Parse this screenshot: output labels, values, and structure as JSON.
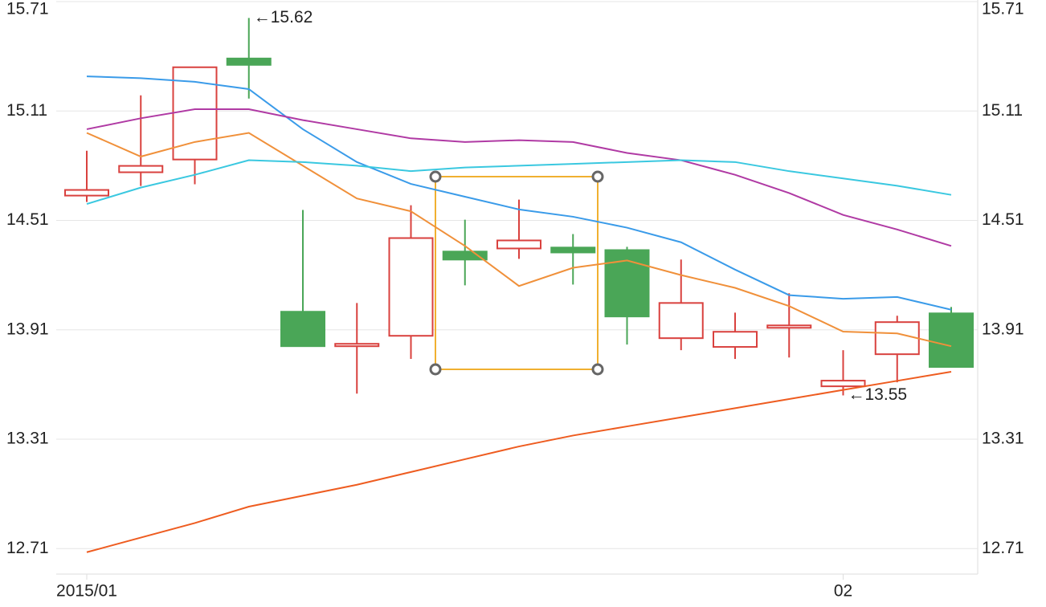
{
  "chart_data": {
    "type": "candlestick",
    "categories": [
      "2015/01",
      null,
      null,
      null,
      null,
      null,
      null,
      null,
      null,
      null,
      null,
      null,
      null,
      null,
      "02",
      null,
      null
    ],
    "open": [
      14.646,
      14.774,
      14.844,
      15.398,
      14.009,
      13.82,
      13.877,
      14.339,
      14.356,
      14.361,
      14.347,
      13.864,
      13.816,
      13.921,
      13.6,
      13.776,
      14.0
    ],
    "high": [
      14.892,
      15.196,
      15.35,
      15.62,
      14.567,
      14.057,
      14.593,
      14.514,
      14.624,
      14.435,
      14.365,
      14.295,
      14.004,
      14.11,
      13.798,
      13.987,
      14.035
    ],
    "low": [
      14.611,
      14.699,
      14.708,
      15.178,
      13.82,
      13.56,
      13.75,
      14.154,
      14.299,
      14.158,
      13.829,
      13.798,
      13.75,
      13.758,
      13.55,
      13.622,
      13.706
    ],
    "close": [
      14.677,
      14.809,
      15.35,
      15.363,
      13.82,
      13.833,
      14.413,
      14.295,
      14.4,
      14.334,
      13.983,
      14.057,
      13.899,
      13.934,
      13.631,
      13.952,
      13.706
    ],
    "up_color": "#d9413e",
    "down_color": "#4aa657",
    "series": [
      {
        "color": "#f0903a",
        "values": [
          14.99,
          14.86,
          14.94,
          14.99,
          14.81,
          14.63,
          14.56,
          14.37,
          14.15,
          14.25,
          14.29,
          14.21,
          14.14,
          14.04,
          13.9,
          13.89,
          13.82
        ]
      },
      {
        "color": "#3a9be9",
        "values": [
          15.3,
          15.29,
          15.27,
          15.23,
          15.01,
          14.83,
          14.71,
          14.64,
          14.57,
          14.53,
          14.47,
          14.39,
          14.24,
          14.1,
          14.08,
          14.09,
          14.02
        ]
      },
      {
        "color": "#b03aa4",
        "values": [
          15.01,
          15.07,
          15.12,
          15.12,
          15.06,
          15.01,
          14.96,
          14.94,
          14.95,
          14.94,
          14.88,
          14.84,
          14.76,
          14.66,
          14.54,
          14.46,
          14.37
        ]
      },
      {
        "color": "#3ac8e0",
        "values": [
          14.6,
          14.69,
          14.76,
          14.84,
          14.83,
          14.81,
          14.78,
          14.8,
          14.81,
          14.82,
          14.83,
          14.84,
          14.83,
          14.78,
          14.74,
          14.7,
          14.65
        ]
      },
      {
        "color": "#ee5c20",
        "values": [
          12.69,
          12.77,
          12.85,
          12.94,
          13.0,
          13.06,
          13.13,
          13.2,
          13.27,
          13.33,
          13.38,
          13.43,
          13.48,
          13.53,
          13.58,
          13.63,
          13.68
        ]
      }
    ],
    "max_label": "←15.62",
    "min_label": "←13.55",
    "ylim": [
      12.57,
      15.71
    ],
    "yticks": [
      12.71,
      13.31,
      13.91,
      14.51,
      15.11,
      15.71
    ],
    "grid": true
  }
}
